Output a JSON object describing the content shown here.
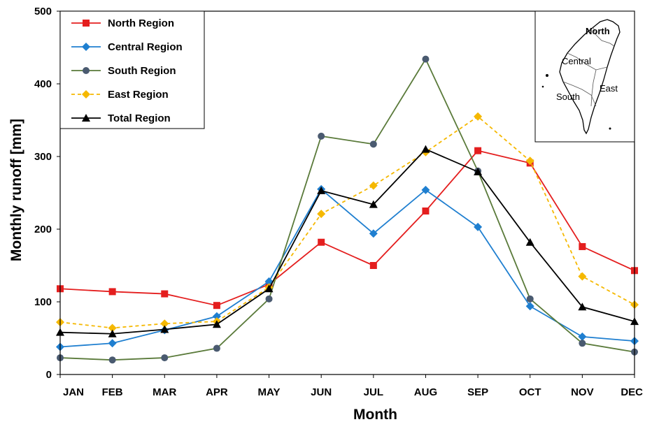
{
  "chart_data": {
    "type": "line",
    "xlabel": "Month",
    "ylabel": "Monthly runoff [mm]",
    "ylim": [
      0,
      500
    ],
    "yticks": [
      0,
      100,
      200,
      300,
      400,
      500
    ],
    "categories": [
      "JAN",
      "FEB",
      "MAR",
      "APR",
      "MAY",
      "JUN",
      "JUL",
      "AUG",
      "SEP",
      "OCT",
      "NOV",
      "DEC"
    ],
    "grid": false,
    "legend_position": "top-left",
    "series": [
      {
        "name": "North Region",
        "color": "#e41e1e",
        "marker": "square",
        "dashed": false,
        "values": [
          118,
          114,
          111,
          95,
          124,
          182,
          150,
          225,
          308,
          291,
          176,
          143
        ]
      },
      {
        "name": "Central Region",
        "color": "#1f7fd0",
        "marker": "diamond",
        "dashed": false,
        "values": [
          38,
          43,
          61,
          80,
          128,
          255,
          194,
          254,
          203,
          94,
          52,
          46
        ]
      },
      {
        "name": "South Region",
        "color": "#5a7a3a",
        "marker": "circle",
        "dashed": false,
        "values": [
          23,
          20,
          23,
          36,
          104,
          328,
          317,
          434,
          280,
          104,
          43,
          31
        ]
      },
      {
        "name": "East Region",
        "color": "#f5b800",
        "marker": "diamond",
        "dashed": true,
        "values": [
          72,
          64,
          70,
          73,
          120,
          221,
          260,
          306,
          355,
          294,
          135,
          96
        ]
      },
      {
        "name": "Total Region",
        "color": "#000000",
        "marker": "triangle",
        "dashed": false,
        "values": [
          58,
          56,
          62,
          69,
          118,
          253,
          234,
          310,
          279,
          182,
          93,
          73
        ]
      }
    ]
  },
  "map_inset": {
    "labels": {
      "north": "North",
      "central": "Central",
      "south": "South",
      "east": "East"
    }
  }
}
